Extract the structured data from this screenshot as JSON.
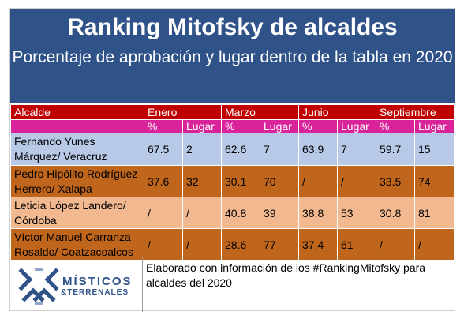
{
  "title": "Ranking Mitofsky de alcaldes",
  "subtitle": "Porcentaje de aprobación y lugar dentro de la tabla en 2020",
  "colors": {
    "header_bg": "#2f5288",
    "header_row": "#c00000",
    "subheader_row": "#d9239a",
    "row_light_blue": "#b7c9e7",
    "row_brown": "#c0651c",
    "row_peach": "#f2b990"
  },
  "table": {
    "name_header": "Alcalde",
    "months": [
      "Enero",
      "Marzo",
      "Junio",
      "Septiembre"
    ],
    "sub_headers": [
      "%",
      "Lugar"
    ],
    "rows": [
      {
        "name": "Fernando Yunes Márquez/ Veracruz",
        "values": [
          "67.5",
          "2",
          "62.6",
          "7",
          "63.9",
          "7",
          "59.7",
          "15"
        ],
        "color": "#b7c9e7"
      },
      {
        "name": "Pedro Hipólito Rodríguez Herrero/ Xalapa",
        "values": [
          "37.6",
          "32",
          "30.1",
          "70",
          "/",
          "/",
          "33.5",
          "74"
        ],
        "color": "#c0651c"
      },
      {
        "name": "Leticia López Landero/ Córdoba",
        "values": [
          "/",
          "/",
          "40.8",
          "39",
          "38.8",
          "53",
          "30.8",
          "81"
        ],
        "color": "#f2b990"
      },
      {
        "name": "Víctor Manuel Carranza Rosaldo/ Coatzacoalcos",
        "values": [
          "/",
          "/",
          "28.6",
          "77",
          "37.4",
          "61",
          "/",
          "/"
        ],
        "color": "#c0651c"
      }
    ]
  },
  "footer": {
    "brand_line1": "MÍSTICOS",
    "brand_line2": "&TERRENALES",
    "logo_icon": "mt-chevron-logo-icon",
    "note": "Elaborado con información de los #RankingMitofsky para alcaldes del 2020"
  }
}
